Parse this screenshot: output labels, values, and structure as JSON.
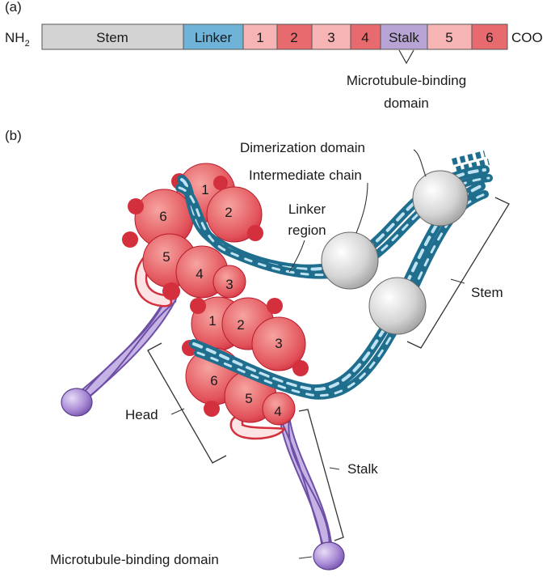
{
  "panel_a": {
    "label": "(a)",
    "n_terminus": "NH",
    "n_terminus_sub": "2",
    "c_terminus": "COO",
    "segments": [
      {
        "name": "stem",
        "label": "Stem"
      },
      {
        "name": "linker",
        "label": "Linker"
      },
      {
        "name": "aaa-1",
        "label": "1"
      },
      {
        "name": "aaa-2",
        "label": "2"
      },
      {
        "name": "aaa-3",
        "label": "3"
      },
      {
        "name": "aaa-4",
        "label": "4"
      },
      {
        "name": "stalk",
        "label": "Stalk"
      },
      {
        "name": "aaa-5",
        "label": "5"
      },
      {
        "name": "aaa-6",
        "label": "6"
      }
    ],
    "callout_line1": "Microtubule-binding",
    "callout_line2": "domain"
  },
  "panel_b": {
    "label": "(b)",
    "labels": {
      "dimerization": "Dimerization domain",
      "intermediate_chain": "Intermediate chain",
      "linker_line1": "Linker",
      "linker_line2": "region",
      "stem": "Stem",
      "head": "Head",
      "stalk": "Stalk",
      "mt_binding": "Microtubule-binding domain"
    },
    "head1_domains": [
      "1",
      "2",
      "3",
      "4",
      "5",
      "6"
    ],
    "head2_domains": [
      "1",
      "2",
      "3",
      "4",
      "5",
      "6"
    ]
  },
  "colors": {
    "stem": "#d3d3d3",
    "linker": "#6fb3d9",
    "aaa_light": "#f6b4b4",
    "aaa_dark": "#e76a6f",
    "stalk": "#b7a4d4",
    "head_dark": "#d32f3c",
    "head_light": "#f08a86",
    "chain_dark": "#1f6e8e",
    "chain_light": "#bfe3f2",
    "stalk_purple": "#9a7cc7"
  }
}
